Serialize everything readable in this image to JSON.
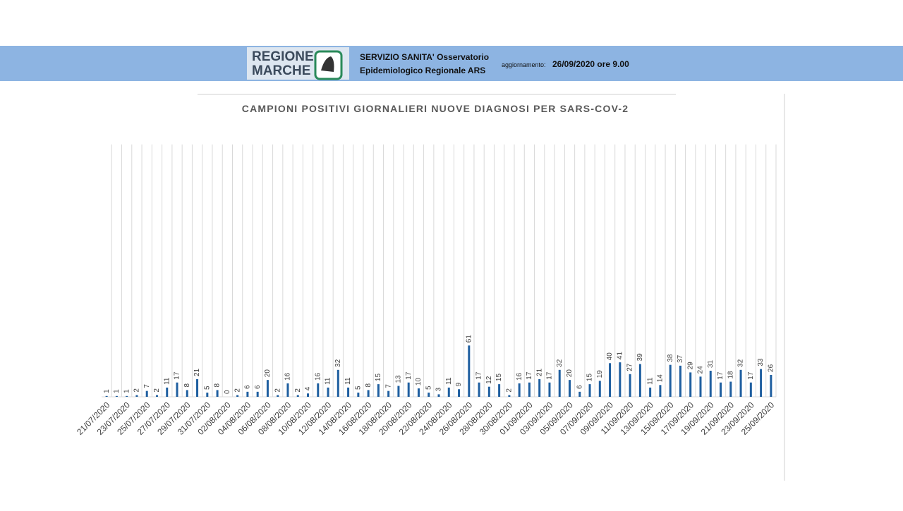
{
  "header": {
    "logo": "REGIONE MARCHE",
    "service_line1": "SERVIZIO SANITA' Osservatorio",
    "service_line2": "Epidemiologico Regionale ARS",
    "update_label": "aggiornamento:",
    "update_value": "26/09/2020 ore 9.00"
  },
  "chart_data": {
    "type": "bar",
    "title": "CAMPIONI POSITIVI GIORNALIERI NUOVE DIAGNOSI PER SARS-COV-2",
    "color": "#1f5fa0",
    "categories": [
      "21/07/2020",
      null,
      "23/07/2020",
      null,
      "25/07/2020",
      null,
      "27/07/2020",
      null,
      "29/07/2020",
      null,
      "31/07/2020",
      null,
      "02/08/2020",
      null,
      "04/08/2020",
      null,
      "06/08/2020",
      null,
      "08/08/2020",
      null,
      "10/08/2020",
      null,
      "12/08/2020",
      null,
      "14/08/2020",
      null,
      "16/08/2020",
      null,
      "18/08/2020",
      null,
      "20/08/2020",
      null,
      "22/08/2020",
      null,
      "24/08/2020",
      null,
      "26/08/2020",
      null,
      "28/08/2020",
      null,
      "30/08/2020",
      null,
      "01/09/2020",
      null,
      "03/09/2020",
      null,
      "05/09/2020",
      null,
      "07/09/2020",
      null,
      "09/09/2020",
      null,
      "11/09/2020",
      null,
      "13/09/2020",
      null,
      "15/09/2020",
      null,
      "17/09/2020",
      null,
      "19/09/2020",
      null,
      "21/09/2020",
      null,
      "23/09/2020",
      null,
      "25/09/2020"
    ],
    "values": [
      1,
      1,
      1,
      2,
      7,
      2,
      11,
      17,
      8,
      21,
      5,
      8,
      0,
      2,
      6,
      6,
      20,
      2,
      16,
      2,
      4,
      16,
      11,
      32,
      11,
      5,
      8,
      15,
      7,
      13,
      17,
      10,
      5,
      3,
      11,
      9,
      61,
      17,
      12,
      15,
      2,
      16,
      17,
      21,
      17,
      32,
      20,
      6,
      15,
      19,
      40,
      41,
      27,
      39,
      11,
      14,
      38,
      37,
      29,
      24,
      31,
      17,
      18,
      32,
      17,
      33,
      26
    ],
    "ylim": [
      0,
      300
    ],
    "grid": true
  }
}
